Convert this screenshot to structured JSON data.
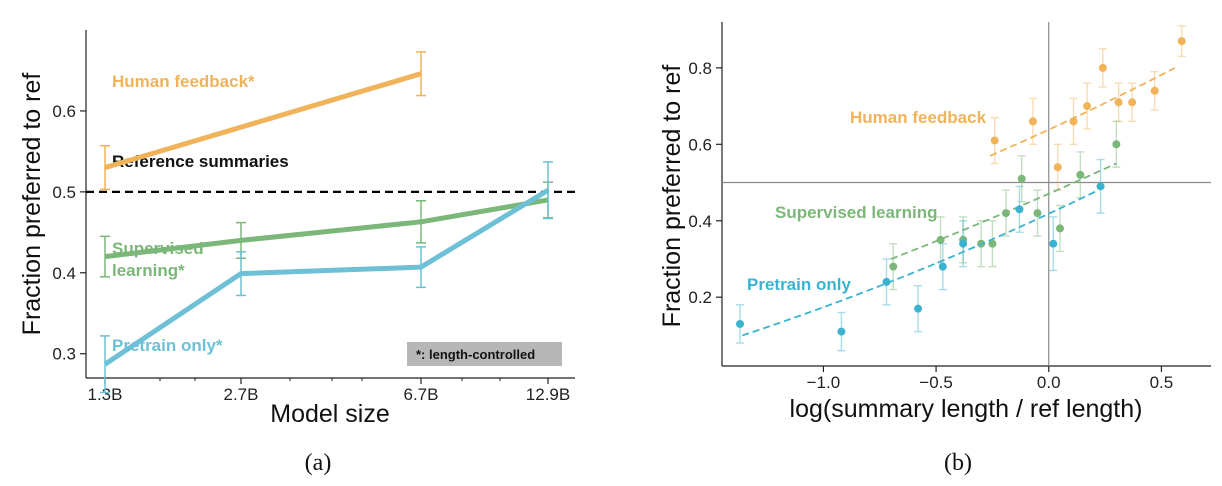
{
  "colors": {
    "human": "#f0b35a",
    "supervised": "#7cb77a",
    "pretrain": "#6dc0d5",
    "pretrain_b": "#3bb3cf",
    "reference": "#000000",
    "axis": "#222222"
  },
  "chart_data": [
    {
      "type": "line",
      "caption": "(a)",
      "xlabel": "Model size",
      "ylabel": "Fraction preferred to ref",
      "categories": [
        "1.3B",
        "2.7B",
        "6.7B",
        "12.9B"
      ],
      "x_scale": "log",
      "ylim": [
        0.27,
        0.7
      ],
      "yticks": [
        "0.3",
        "0.4",
        "0.5",
        "0.6"
      ],
      "grid": false,
      "reference": {
        "label": "Reference summaries",
        "value": 0.5
      },
      "note": "*: length-controlled",
      "series": [
        {
          "name": "Human feedback*",
          "color": "human",
          "values": [
            0.53,
            null,
            0.646,
            null
          ],
          "err": [
            0.027,
            null,
            0.027,
            null
          ]
        },
        {
          "name": "Supervised learning*",
          "color": "supervised",
          "values": [
            0.42,
            0.44,
            0.463,
            0.49
          ],
          "err": [
            0.025,
            0.022,
            0.026,
            0.022
          ]
        },
        {
          "name": "Pretrain only*",
          "color": "pretrain",
          "values": [
            0.287,
            0.399,
            0.407,
            0.502
          ],
          "err": [
            0.035,
            0.027,
            0.025,
            0.035
          ]
        }
      ]
    },
    {
      "type": "scatter",
      "caption": "(b)",
      "xlabel": "log(summary length / ref length)",
      "ylabel": "Fraction preferred to ref",
      "xlim": [
        -1.45,
        0.72
      ],
      "ylim": [
        0.02,
        0.92
      ],
      "xticks": [
        "−1.0",
        "−0.5",
        "0.0",
        "0.5"
      ],
      "yticks": [
        "0.2",
        "0.4",
        "0.6",
        "0.8"
      ],
      "grid": false,
      "reference_lines": {
        "x": 0.0,
        "y": 0.5
      },
      "series": [
        {
          "name": "Human feedback",
          "color": "human",
          "points": [
            {
              "x": -0.24,
              "y": 0.61,
              "err": 0.06
            },
            {
              "x": -0.07,
              "y": 0.66,
              "err": 0.06
            },
            {
              "x": 0.04,
              "y": 0.54,
              "err": 0.06
            },
            {
              "x": 0.11,
              "y": 0.66,
              "err": 0.06
            },
            {
              "x": 0.17,
              "y": 0.7,
              "err": 0.06
            },
            {
              "x": 0.24,
              "y": 0.8,
              "err": 0.05
            },
            {
              "x": 0.31,
              "y": 0.71,
              "err": 0.05
            },
            {
              "x": 0.37,
              "y": 0.71,
              "err": 0.05
            },
            {
              "x": 0.47,
              "y": 0.74,
              "err": 0.05
            },
            {
              "x": 0.59,
              "y": 0.87,
              "err": 0.04
            }
          ],
          "trend": {
            "x": [
              -0.26,
              0.56
            ],
            "y": [
              0.57,
              0.8
            ]
          }
        },
        {
          "name": "Supervised learning",
          "color": "supervised",
          "points": [
            {
              "x": -0.69,
              "y": 0.28,
              "err": 0.06
            },
            {
              "x": -0.48,
              "y": 0.35,
              "err": 0.06
            },
            {
              "x": -0.38,
              "y": 0.35,
              "err": 0.06
            },
            {
              "x": -0.3,
              "y": 0.34,
              "err": 0.06
            },
            {
              "x": -0.25,
              "y": 0.34,
              "err": 0.06
            },
            {
              "x": -0.19,
              "y": 0.42,
              "err": 0.06
            },
            {
              "x": -0.12,
              "y": 0.51,
              "err": 0.06
            },
            {
              "x": -0.05,
              "y": 0.42,
              "err": 0.06
            },
            {
              "x": 0.05,
              "y": 0.38,
              "err": 0.06
            },
            {
              "x": 0.14,
              "y": 0.52,
              "err": 0.06
            },
            {
              "x": 0.3,
              "y": 0.6,
              "err": 0.06
            }
          ],
          "trend": {
            "x": [
              -0.7,
              0.3
            ],
            "y": [
              0.3,
              0.55
            ]
          }
        },
        {
          "name": "Pretrain only",
          "color": "pretrain_b",
          "points": [
            {
              "x": -1.37,
              "y": 0.13,
              "err": 0.05
            },
            {
              "x": -0.92,
              "y": 0.11,
              "err": 0.05
            },
            {
              "x": -0.72,
              "y": 0.24,
              "err": 0.06
            },
            {
              "x": -0.58,
              "y": 0.17,
              "err": 0.06
            },
            {
              "x": -0.47,
              "y": 0.28,
              "err": 0.06
            },
            {
              "x": -0.38,
              "y": 0.34,
              "err": 0.06
            },
            {
              "x": -0.13,
              "y": 0.43,
              "err": 0.06
            },
            {
              "x": 0.02,
              "y": 0.34,
              "err": 0.07
            },
            {
              "x": 0.23,
              "y": 0.49,
              "err": 0.07
            }
          ],
          "trend": {
            "x": [
              -1.36,
              0.22
            ],
            "y": [
              0.1,
              0.48
            ]
          }
        }
      ]
    }
  ]
}
